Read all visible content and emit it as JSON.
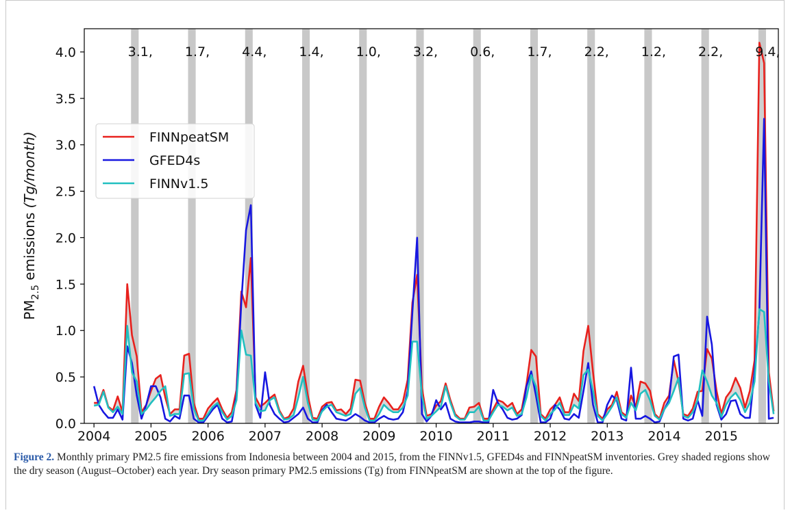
{
  "figure": {
    "label": "Figure 2.",
    "caption": "Monthly primary PM2.5 fire emissions from Indonesia between 2004 and 2015, from the FINNv1.5, GFED4s and FINNpeatSM inventories. Grey shaded regions show the dry season (August–October) each year. Dry season primary PM2.5 emissions (Tg) from FINNpeatSM are shown at the top of the figure."
  },
  "chart_data": {
    "type": "line",
    "ylabel_main": "PM",
    "ylabel_sub": "2.5",
    "ylabel_rest": " emissions ",
    "ylabel_unit": "(Tg/month)",
    "xlabel": "",
    "ylim": [
      0,
      4.25
    ],
    "xlim": [
      2003.83,
      2016.0
    ],
    "yticks": [
      0.0,
      0.5,
      1.0,
      1.5,
      2.0,
      2.5,
      3.0,
      3.5,
      4.0
    ],
    "ytick_labels": [
      "0.0",
      "0.5",
      "1.0",
      "1.5",
      "2.0",
      "2.5",
      "3.0",
      "3.5",
      "4.0"
    ],
    "xticks": [
      2004,
      2005,
      2006,
      2007,
      2008,
      2009,
      2010,
      2011,
      2012,
      2013,
      2014,
      2015
    ],
    "xtick_labels": [
      "2004",
      "2005",
      "2006",
      "2007",
      "2008",
      "2009",
      "2010",
      "2011",
      "2012",
      "2013",
      "2014",
      "2015"
    ],
    "grid": false,
    "legend_position": "upper-left",
    "dry_season_shading": {
      "color": "#c8c8c8",
      "years": [
        2004,
        2005,
        2006,
        2007,
        2008,
        2009,
        2010,
        2011,
        2012,
        2013,
        2014,
        2015
      ],
      "months": "August–October"
    },
    "dry_season_annotations": [
      "3.1,",
      "1.7,",
      "4.4,",
      "1.4,",
      "1.0,",
      "3.2,",
      "0.6,",
      "1.7,",
      "2.2,",
      "1.2,",
      "2.2,",
      "9.4,"
    ],
    "start_year": 2004,
    "series": [
      {
        "name": "FINNpeatSM",
        "color": "#e8211d",
        "values": [
          0.22,
          0.22,
          0.36,
          0.18,
          0.14,
          0.29,
          0.12,
          1.5,
          0.95,
          0.72,
          0.12,
          0.2,
          0.35,
          0.48,
          0.52,
          0.28,
          0.1,
          0.15,
          0.15,
          0.73,
          0.75,
          0.22,
          0.05,
          0.05,
          0.16,
          0.22,
          0.27,
          0.15,
          0.06,
          0.12,
          0.36,
          1.42,
          1.25,
          1.78,
          0.28,
          0.18,
          0.22,
          0.27,
          0.31,
          0.14,
          0.05,
          0.07,
          0.16,
          0.45,
          0.62,
          0.3,
          0.06,
          0.05,
          0.18,
          0.22,
          0.23,
          0.14,
          0.15,
          0.1,
          0.16,
          0.47,
          0.46,
          0.22,
          0.05,
          0.05,
          0.18,
          0.28,
          0.22,
          0.15,
          0.15,
          0.23,
          0.47,
          1.3,
          1.6,
          0.38,
          0.08,
          0.1,
          0.19,
          0.24,
          0.43,
          0.25,
          0.1,
          0.05,
          0.05,
          0.17,
          0.18,
          0.22,
          0.05,
          0.05,
          0.15,
          0.25,
          0.23,
          0.18,
          0.22,
          0.1,
          0.15,
          0.42,
          0.79,
          0.72,
          0.1,
          0.05,
          0.15,
          0.2,
          0.28,
          0.12,
          0.12,
          0.32,
          0.24,
          0.78,
          1.05,
          0.55,
          0.1,
          0.05,
          0.15,
          0.2,
          0.34,
          0.12,
          0.08,
          0.3,
          0.18,
          0.45,
          0.43,
          0.35,
          0.1,
          0.05,
          0.22,
          0.3,
          0.68,
          0.45,
          0.1,
          0.08,
          0.16,
          0.34,
          0.35,
          0.8,
          0.7,
          0.35,
          0.1,
          0.28,
          0.35,
          0.49,
          0.38,
          0.17,
          0.35,
          0.68,
          4.1,
          3.88,
          0.55,
          0.13
        ]
      },
      {
        "name": "GFED4s",
        "color": "#1717e0",
        "values": [
          0.4,
          0.2,
          0.12,
          0.06,
          0.06,
          0.15,
          0.04,
          0.83,
          0.65,
          0.3,
          0.05,
          0.2,
          0.4,
          0.4,
          0.28,
          0.05,
          0.02,
          0.08,
          0.05,
          0.3,
          0.3,
          0.05,
          0.01,
          0.01,
          0.08,
          0.15,
          0.2,
          0.05,
          0.01,
          0.02,
          0.3,
          1.3,
          2.08,
          2.35,
          0.2,
          0.06,
          0.55,
          0.2,
          0.1,
          0.05,
          0.01,
          0.02,
          0.06,
          0.1,
          0.17,
          0.05,
          0.01,
          0.01,
          0.14,
          0.2,
          0.12,
          0.05,
          0.04,
          0.03,
          0.06,
          0.1,
          0.07,
          0.03,
          0.01,
          0.01,
          0.05,
          0.08,
          0.05,
          0.04,
          0.05,
          0.12,
          0.35,
          1.2,
          2.0,
          0.1,
          0.02,
          0.08,
          0.25,
          0.15,
          0.22,
          0.05,
          0.02,
          0.01,
          0.01,
          0.01,
          0.02,
          0.02,
          0.01,
          0.01,
          0.36,
          0.22,
          0.15,
          0.06,
          0.04,
          0.05,
          0.09,
          0.4,
          0.56,
          0.3,
          0.01,
          0.01,
          0.05,
          0.2,
          0.15,
          0.05,
          0.04,
          0.1,
          0.06,
          0.35,
          0.65,
          0.2,
          0.01,
          0.01,
          0.2,
          0.3,
          0.25,
          0.05,
          0.03,
          0.6,
          0.05,
          0.05,
          0.08,
          0.05,
          0.01,
          0.02,
          0.15,
          0.25,
          0.72,
          0.74,
          0.05,
          0.03,
          0.05,
          0.25,
          0.08,
          1.15,
          0.85,
          0.2,
          0.04,
          0.1,
          0.24,
          0.25,
          0.1,
          0.06,
          0.06,
          0.56,
          1.2,
          3.28,
          0.05,
          0.06
        ]
      },
      {
        "name": "FINNv1.5",
        "color": "#21bfc0",
        "values": [
          0.19,
          0.2,
          0.34,
          0.17,
          0.12,
          0.18,
          0.1,
          1.05,
          0.55,
          0.45,
          0.1,
          0.15,
          0.22,
          0.28,
          0.35,
          0.4,
          0.08,
          0.1,
          0.1,
          0.53,
          0.54,
          0.16,
          0.03,
          0.03,
          0.1,
          0.18,
          0.22,
          0.12,
          0.04,
          0.08,
          0.25,
          1.0,
          0.74,
          0.73,
          0.22,
          0.13,
          0.14,
          0.25,
          0.28,
          0.12,
          0.04,
          0.05,
          0.09,
          0.28,
          0.5,
          0.22,
          0.04,
          0.03,
          0.13,
          0.18,
          0.2,
          0.12,
          0.1,
          0.08,
          0.1,
          0.32,
          0.38,
          0.17,
          0.03,
          0.03,
          0.1,
          0.2,
          0.15,
          0.12,
          0.12,
          0.17,
          0.3,
          0.88,
          0.88,
          0.3,
          0.05,
          0.08,
          0.13,
          0.18,
          0.4,
          0.22,
          0.08,
          0.04,
          0.04,
          0.12,
          0.12,
          0.18,
          0.03,
          0.03,
          0.12,
          0.2,
          0.18,
          0.14,
          0.17,
          0.08,
          0.1,
          0.28,
          0.52,
          0.4,
          0.08,
          0.03,
          0.1,
          0.15,
          0.22,
          0.09,
          0.09,
          0.2,
          0.16,
          0.52,
          0.58,
          0.35,
          0.08,
          0.03,
          0.1,
          0.18,
          0.28,
          0.1,
          0.06,
          0.22,
          0.14,
          0.32,
          0.36,
          0.25,
          0.08,
          0.04,
          0.15,
          0.22,
          0.35,
          0.49,
          0.08,
          0.06,
          0.12,
          0.25,
          0.57,
          0.45,
          0.3,
          0.22,
          0.07,
          0.2,
          0.28,
          0.33,
          0.25,
          0.12,
          0.22,
          0.45,
          1.23,
          1.2,
          0.45,
          0.1
        ]
      }
    ],
    "fill_between": {
      "upper": "FINNpeatSM",
      "lower": "FINNv1.5",
      "color": "#d0d0d0"
    }
  }
}
